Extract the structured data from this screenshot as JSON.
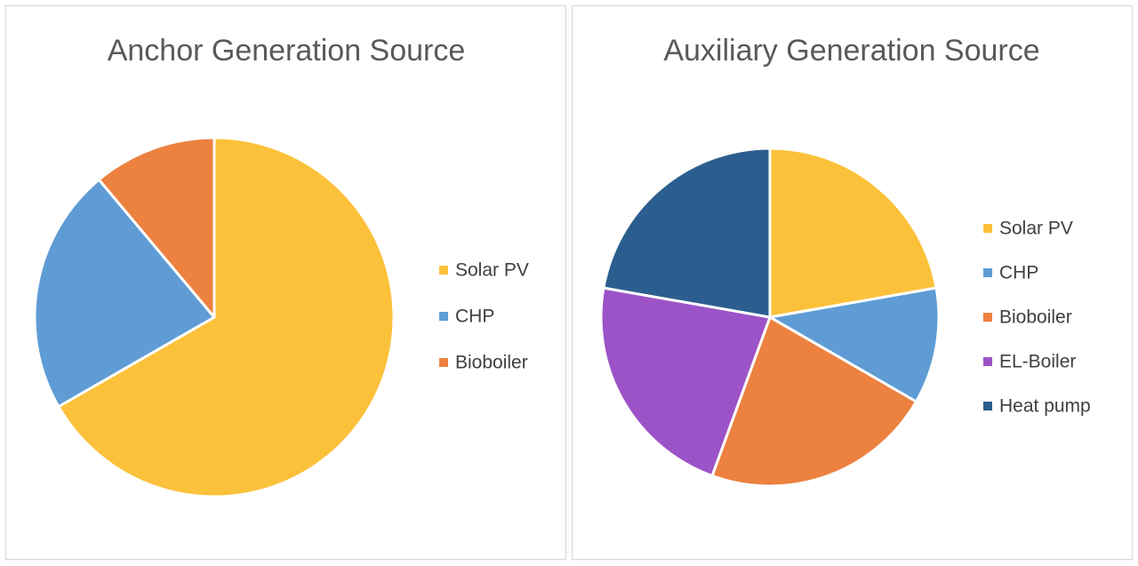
{
  "chart_data": [
    {
      "type": "pie",
      "title": "Anchor Generation Source",
      "categories": [
        "Solar PV",
        "CHP",
        "Bioboiler"
      ],
      "values": [
        66.7,
        22.2,
        11.1
      ],
      "colors": [
        "#FCC13A",
        "#5F9CD5",
        "#EC8140"
      ],
      "legend": "right",
      "start_angle_deg": 0,
      "direction": "clockwise"
    },
    {
      "type": "pie",
      "title": "Auxiliary Generation Source",
      "categories": [
        "Solar PV",
        "CHP",
        "Bioboiler",
        "EL-Boiler",
        "Heat pump"
      ],
      "values": [
        22.2,
        11.1,
        22.2,
        22.2,
        22.2
      ],
      "colors": [
        "#FCC13A",
        "#5F9CD5",
        "#EC8140",
        "#9C53C7",
        "#2B5E8E"
      ],
      "legend": "right",
      "start_angle_deg": 0,
      "direction": "clockwise"
    }
  ]
}
